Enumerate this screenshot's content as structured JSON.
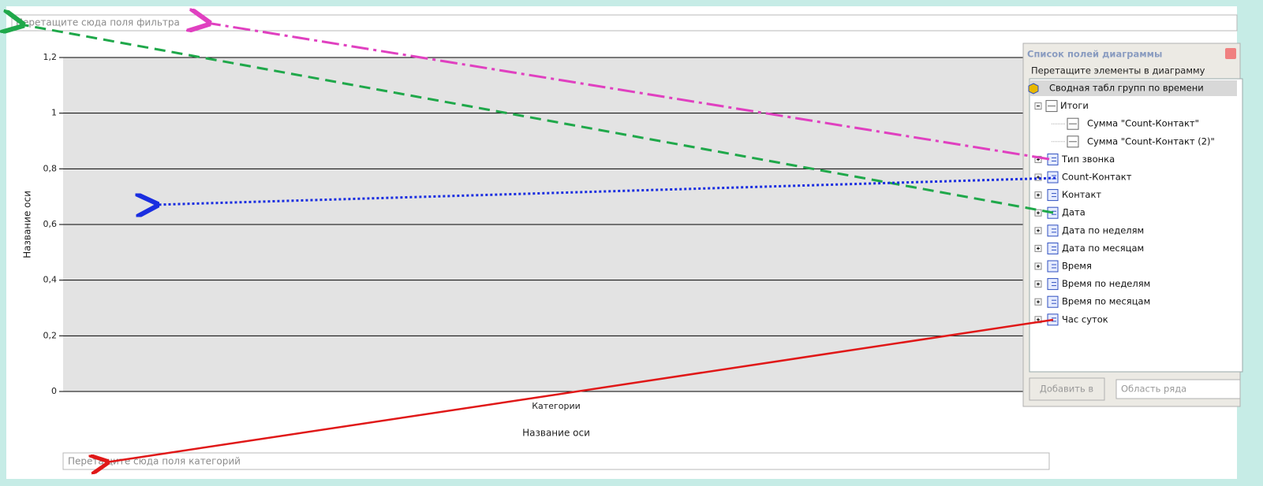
{
  "filter_zone": "Перетащите сюда поля фильтра",
  "chart": {
    "ylim": [
      0,
      1.2
    ],
    "yticks": [
      0,
      {
        "value": 0.2,
        "label": "0,2"
      },
      {
        "value": 0.4,
        "label": "0,4"
      },
      {
        "value": 0.6,
        "label": "0,6"
      },
      {
        "value": 0.8,
        "label": "0,8"
      },
      1,
      {
        "value": 1.2,
        "label": "1,2"
      }
    ],
    "y_axis_title": "Название оси",
    "category_label": "Категории",
    "x_axis_title": "Название оси"
  },
  "category_zone": "Перетащите сюда поля категорий",
  "field_list": {
    "title": "Список полей диаграммы",
    "instruction": "Перетащите элементы в диаграмму",
    "root": "Сводная табл групп по времени",
    "totals": {
      "label": "Итоги",
      "items": [
        "Сумма \"Count-Контакт\"",
        "Сумма \"Count-Контакт (2)\""
      ]
    },
    "fields": [
      "Тип звонка",
      "Count-Контакт",
      "Контакт",
      "Дата",
      "Дата по неделям",
      "Дата по месяцам",
      "Время",
      "Время по неделям",
      "Время по месяцам",
      "Час суток"
    ],
    "add_button": "Добавить в",
    "area_select": "Область ряда"
  }
}
